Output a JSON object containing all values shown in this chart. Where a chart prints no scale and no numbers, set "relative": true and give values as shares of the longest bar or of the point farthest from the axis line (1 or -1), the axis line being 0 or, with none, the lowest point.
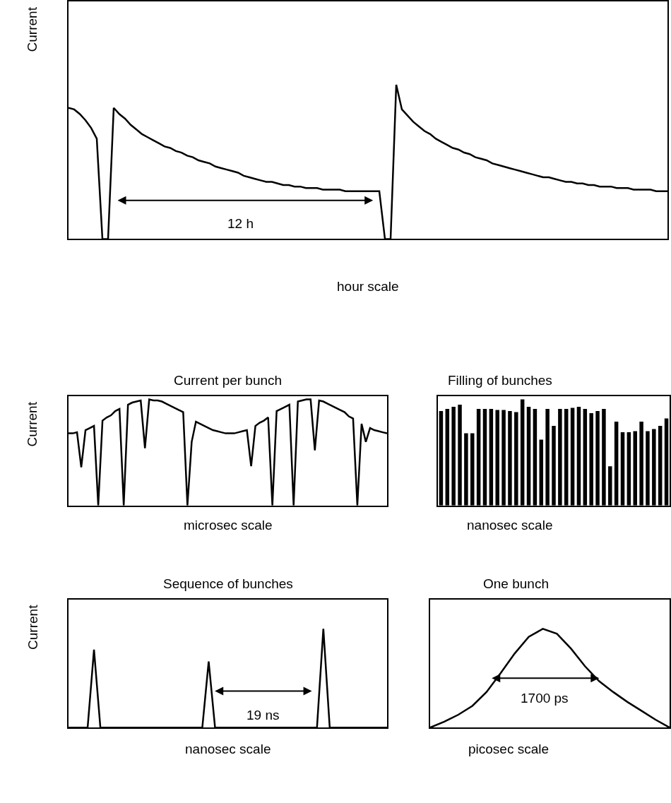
{
  "chart_data": [
    {
      "type": "line",
      "relative": true,
      "color": "#000000",
      "ylabel": "Current",
      "xlabel": "hour scale",
      "annotations": [
        "12 h"
      ],
      "categories": [
        null,
        null,
        null,
        null,
        null,
        null,
        null,
        null,
        null,
        null,
        null,
        null,
        null,
        null,
        null,
        null,
        null,
        null,
        null,
        null,
        null,
        null,
        null,
        null,
        null,
        null,
        null,
        null,
        null,
        null,
        null,
        null,
        null,
        null,
        null,
        null,
        null,
        null,
        null,
        null,
        null,
        null,
        null,
        null,
        null,
        null,
        null,
        null,
        null,
        null,
        null,
        null,
        null,
        null,
        null,
        null,
        null,
        null,
        null,
        null,
        null,
        null,
        null,
        null,
        null,
        null,
        null,
        null,
        null,
        null,
        null,
        null,
        null,
        null,
        null,
        null,
        null,
        null,
        null,
        null,
        null,
        null,
        null,
        null,
        null,
        null,
        null,
        null,
        null,
        null,
        null,
        null,
        null,
        null,
        null,
        null,
        null,
        null,
        null,
        null,
        null,
        null,
        null,
        null,
        null,
        null,
        null
      ],
      "values": [
        0.85,
        0.84,
        0.81,
        0.77,
        0.72,
        0.65,
        0,
        0,
        0.85,
        0.81,
        0.78,
        0.74,
        0.71,
        0.68,
        0.66,
        0.64,
        0.62,
        0.6,
        0.59,
        0.57,
        0.56,
        0.54,
        0.53,
        0.51,
        0.5,
        0.49,
        0.47,
        0.46,
        0.45,
        0.44,
        0.43,
        0.41,
        0.4,
        0.39,
        0.38,
        0.37,
        0.37,
        0.36,
        0.35,
        0.35,
        0.34,
        0.34,
        0.33,
        0.33,
        0.33,
        0.32,
        0.32,
        0.32,
        0.32,
        0.31,
        0.31,
        0.31,
        0.31,
        0.31,
        0.31,
        0.31,
        0,
        0,
        1.0,
        0.84,
        0.8,
        0.76,
        0.73,
        0.7,
        0.68,
        0.65,
        0.63,
        0.61,
        0.59,
        0.58,
        0.56,
        0.55,
        0.53,
        0.52,
        0.51,
        0.49,
        0.48,
        0.47,
        0.46,
        0.45,
        0.44,
        0.43,
        0.42,
        0.41,
        0.4,
        0.4,
        0.39,
        0.38,
        0.37,
        0.37,
        0.36,
        0.36,
        0.35,
        0.35,
        0.34,
        0.34,
        0.34,
        0.33,
        0.33,
        0.33,
        0.32,
        0.32,
        0.32,
        0.32,
        0.31,
        0.31,
        0.31
      ]
    },
    {
      "type": "line",
      "relative": true,
      "color": "#000000",
      "title": "Current per bunch",
      "ylabel": "Current",
      "xlabel": "microsec scale",
      "categories": [
        null,
        null,
        null,
        null,
        null,
        null,
        null,
        null,
        null,
        null,
        null,
        null,
        null,
        null,
        null,
        null,
        null,
        null,
        null,
        null,
        null,
        null,
        null,
        null,
        null,
        null,
        null,
        null,
        null,
        null,
        null,
        null,
        null,
        null,
        null,
        null,
        null,
        null,
        null,
        null,
        null,
        null,
        null,
        null,
        null,
        null,
        null,
        null,
        null,
        null,
        null,
        null,
        null,
        null,
        null,
        null,
        null,
        null,
        null,
        null,
        null,
        null,
        null,
        null,
        null,
        null,
        null,
        null,
        null,
        null,
        null,
        null,
        null,
        null,
        null,
        null
      ],
      "values": [
        0.68,
        0.68,
        0.69,
        0.36,
        0.71,
        0.73,
        0.75,
        0,
        0.8,
        0.83,
        0.85,
        0.89,
        0.91,
        0,
        0.95,
        0.97,
        0.98,
        0.99,
        0.54,
        1.0,
        0.99,
        0.99,
        0.98,
        0.96,
        0.94,
        0.92,
        0.9,
        0.88,
        0,
        0.6,
        0.79,
        0.77,
        0.75,
        0.73,
        0.71,
        0.7,
        0.69,
        0.68,
        0.68,
        0.68,
        0.69,
        0.7,
        0.71,
        0.37,
        0.75,
        0.78,
        0.8,
        0.83,
        0,
        0.89,
        0.91,
        0.93,
        0.95,
        0,
        0.98,
        0.99,
        1.0,
        1.0,
        0.52,
        0.99,
        0.98,
        0.96,
        0.94,
        0.92,
        0.9,
        0.88,
        0.84,
        0.82,
        0,
        0.77,
        0.6,
        0.73,
        0.71,
        0.7,
        0.69,
        0.68
      ]
    },
    {
      "type": "bar",
      "relative": true,
      "color": "#000000",
      "title": "Filling of bunches",
      "xlabel": "nanosec scale",
      "categories": [
        null,
        null,
        null,
        null,
        null,
        null,
        null,
        null,
        null,
        null,
        null,
        null,
        null,
        null,
        null,
        null,
        null,
        null,
        null,
        null,
        null,
        null,
        null,
        null,
        null,
        null,
        null,
        null,
        null,
        null,
        null,
        null,
        null,
        null,
        null,
        null,
        null
      ],
      "values": [
        0.89,
        0.91,
        0.93,
        0.95,
        0.68,
        0.68,
        0.91,
        0.91,
        0.91,
        0.9,
        0.9,
        0.89,
        0.88,
        1.0,
        0.93,
        0.91,
        0.62,
        0.91,
        0.75,
        0.91,
        0.91,
        0.92,
        0.93,
        0.91,
        0.87,
        0.89,
        0.91,
        0.37,
        0.79,
        0.69,
        0.69,
        0.7,
        0.79,
        0.7,
        0.72,
        0.75,
        0.82
      ]
    },
    {
      "type": "line",
      "relative": true,
      "color": "#000000",
      "title": "Sequence of bunches",
      "ylabel": "Current",
      "xlabel": "nanosec scale",
      "annotations": [
        "19 ns"
      ],
      "categories": [
        null,
        null,
        null,
        null,
        null,
        null,
        null,
        null,
        null,
        null,
        null,
        null,
        null,
        null,
        null,
        null,
        null,
        null,
        null,
        null,
        null,
        null,
        null,
        null,
        null,
        null,
        null,
        null,
        null,
        null,
        null,
        null,
        null,
        null,
        null,
        null,
        null,
        null,
        null,
        null,
        null,
        null,
        null,
        null,
        null,
        null,
        null,
        null,
        null,
        null,
        null
      ],
      "values": [
        0,
        0,
        0,
        0,
        0.79,
        0,
        0,
        0,
        0,
        0,
        0,
        0,
        0,
        0,
        0,
        0,
        0,
        0,
        0,
        0,
        0,
        0,
        0.67,
        0,
        0,
        0,
        0,
        0,
        0,
        0,
        0,
        0,
        0,
        0,
        0,
        0,
        0,
        0,
        0,
        0,
        1.0,
        0,
        0,
        0,
        0,
        0,
        0,
        0,
        0,
        0,
        0
      ]
    },
    {
      "type": "line",
      "relative": true,
      "color": "#000000",
      "title": "One bunch",
      "xlabel": "picosec scale",
      "annotations": [
        "1700 ps"
      ],
      "categories": [
        null,
        null,
        null,
        null,
        null,
        null,
        null,
        null,
        null,
        null,
        null,
        null,
        null,
        null,
        null,
        null,
        null,
        null
      ],
      "values": [
        0,
        0.06,
        0.13,
        0.22,
        0.36,
        0.55,
        0.75,
        0.92,
        1.0,
        0.95,
        0.8,
        0.62,
        0.47,
        0.36,
        0.26,
        0.17,
        0.08,
        0
      ]
    }
  ]
}
